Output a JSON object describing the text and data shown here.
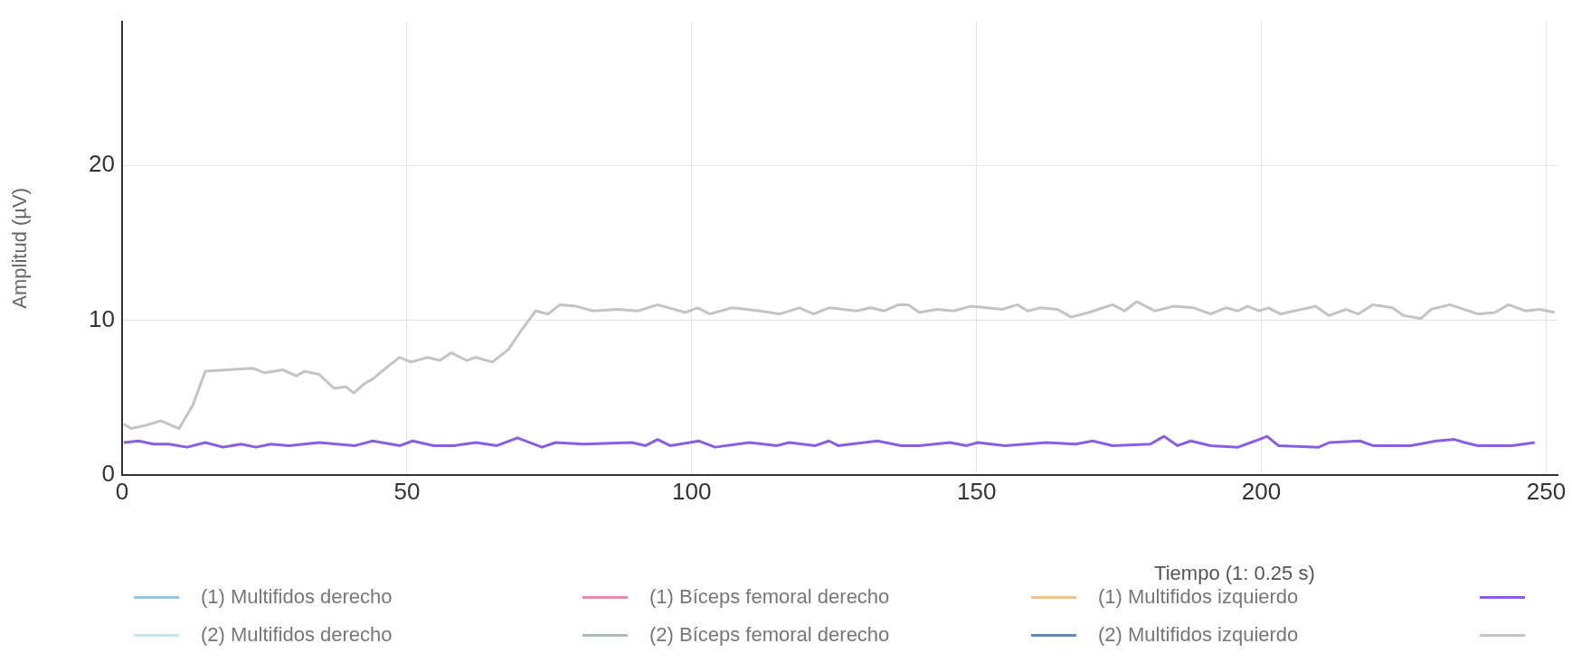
{
  "chart_data": {
    "type": "line",
    "ylabel": "Amplitud (µV)",
    "xlabel": "Tiempo (1: 0.25 s)",
    "xlim": [
      0,
      252
    ],
    "xticks": [
      0,
      50,
      100,
      150,
      200,
      250
    ],
    "ylim": [
      0,
      29.3
    ],
    "yticks": [
      0,
      10,
      20
    ],
    "grid": true,
    "legend": "bottom",
    "series": [
      {
        "name": "(1) Multifidos derecho",
        "color": "#8ec9e6"
      },
      {
        "name": "(1) Bíceps femoral derecho",
        "color": "#e88aa8"
      },
      {
        "name": "(1) Multifidos izquierdo",
        "color": "#f5c08f"
      },
      {
        "color": "#8a5de8",
        "x": [
          0.3,
          2.9,
          5.5,
          8.2,
          11.4,
          14.6,
          17.7,
          20.9,
          23.5,
          26.1,
          29.3,
          34.6,
          37.7,
          40.9,
          44,
          48.8,
          51,
          54.7,
          58.3,
          62.1,
          65.8,
          69.4,
          73.7,
          76.1,
          81,
          89.5,
          91.9,
          94,
          96.2,
          101.3,
          104.1,
          110.1,
          115,
          117.1,
          121.7,
          124.1,
          125.7,
          132.6,
          136.8,
          139.9,
          145.3,
          148.3,
          150.2,
          155,
          162.3,
          167.4,
          170.4,
          173.9,
          180.5,
          182.9,
          185.3,
          187.6,
          191.1,
          195.9,
          198.9,
          201,
          203,
          210.1,
          211.9,
          217.3,
          219.6,
          226.2,
          230.7,
          233.9,
          235.7,
          238,
          244,
          248
        ],
        "values": [
          2.1,
          2.2,
          2.0,
          2.0,
          1.8,
          2.1,
          1.8,
          2.0,
          1.8,
          2.0,
          1.9,
          2.1,
          2.0,
          1.9,
          2.2,
          1.9,
          2.2,
          1.9,
          1.9,
          2.1,
          1.9,
          2.4,
          1.8,
          2.1,
          2.0,
          2.1,
          1.9,
          2.3,
          1.9,
          2.2,
          1.8,
          2.1,
          1.9,
          2.1,
          1.9,
          2.2,
          1.9,
          2.2,
          1.9,
          1.9,
          2.1,
          1.9,
          2.1,
          1.9,
          2.1,
          2.0,
          2.2,
          1.9,
          2.0,
          2.5,
          1.9,
          2.2,
          1.9,
          1.8,
          2.2,
          2.5,
          1.9,
          1.8,
          2.1,
          2.2,
          1.9,
          1.9,
          2.2,
          2.3,
          2.1,
          1.9,
          1.9,
          2.1
        ]
      },
      {
        "name": "(2) Multifidos derecho",
        "color": "#c2e8ec"
      },
      {
        "name": "(2) Bíceps femoral derecho",
        "color": "#a8bdb8"
      },
      {
        "name": "(2) Multifidos izquierdo",
        "color": "#5b88c0"
      },
      {
        "color": "#c4c4c4",
        "x": [
          0.3,
          1.6,
          4,
          6.8,
          10,
          12.4,
          14.6,
          23,
          25,
          28.2,
          30.6,
          32,
          34.6,
          37.2,
          39.3,
          40.7,
          42.5,
          44,
          46.3,
          48.7,
          50.7,
          53.6,
          55.8,
          57.8,
          60.5,
          62.1,
          65,
          67.8,
          70,
          72.6,
          74.8,
          76.9,
          79.7,
          82.7,
          87,
          90.6,
          94,
          98.9,
          101,
          103.2,
          107.1,
          111.9,
          115.5,
          118.9,
          121.4,
          124.1,
          129,
          131.4,
          133.8,
          136.3,
          138,
          140,
          143,
          146,
          149,
          154.5,
          157.2,
          159,
          161.2,
          164.2,
          166.6,
          169.7,
          173.9,
          176,
          178.1,
          181.3,
          184.6,
          188.1,
          191.1,
          193.8,
          195.9,
          197.6,
          199.5,
          201.3,
          203.3,
          207.1,
          209.5,
          211.9,
          214.9,
          217,
          219.6,
          223,
          225,
          228,
          229.8,
          233.1,
          238,
          241,
          243.4,
          246.4,
          248.8,
          251.5
        ],
        "values": [
          3.3,
          3.0,
          3.2,
          3.5,
          3.0,
          4.5,
          6.7,
          6.9,
          6.6,
          6.8,
          6.4,
          6.7,
          6.5,
          5.6,
          5.7,
          5.3,
          5.9,
          6.2,
          6.9,
          7.6,
          7.3,
          7.6,
          7.4,
          7.9,
          7.4,
          7.6,
          7.3,
          8.1,
          9.3,
          10.6,
          10.4,
          11.0,
          10.9,
          10.6,
          10.7,
          10.6,
          11.0,
          10.5,
          10.8,
          10.4,
          10.8,
          10.6,
          10.4,
          10.8,
          10.4,
          10.8,
          10.6,
          10.8,
          10.6,
          11.0,
          11.0,
          10.5,
          10.7,
          10.6,
          10.9,
          10.7,
          11.0,
          10.6,
          10.8,
          10.7,
          10.2,
          10.5,
          11.0,
          10.6,
          11.2,
          10.6,
          10.9,
          10.8,
          10.4,
          10.8,
          10.6,
          10.9,
          10.6,
          10.8,
          10.4,
          10.7,
          10.9,
          10.3,
          10.7,
          10.4,
          11.0,
          10.8,
          10.3,
          10.1,
          10.7,
          11.0,
          10.4,
          10.5,
          11.0,
          10.6,
          10.7,
          10.5
        ]
      }
    ]
  }
}
